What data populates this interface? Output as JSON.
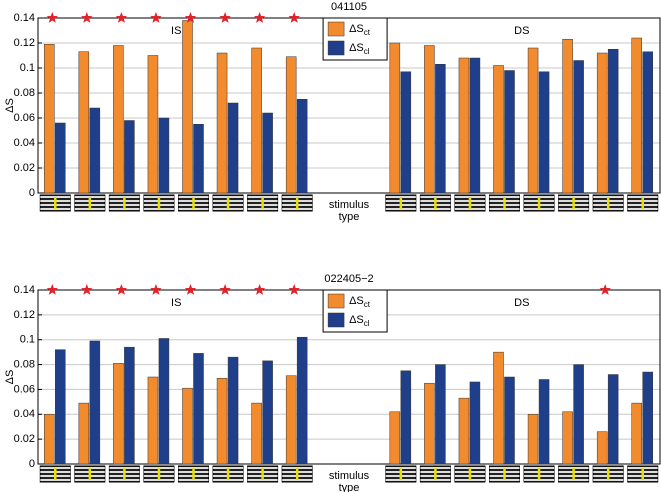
{
  "chart_data": [
    {
      "type": "bar",
      "title": "041105",
      "ylabel": "ΔS",
      "xlabel_lines": [
        "stimulus",
        "type"
      ],
      "group_labels": [
        "IS",
        "DS"
      ],
      "categories": [
        null,
        null,
        null,
        null,
        null,
        null,
        null,
        null,
        null,
        null,
        null,
        null,
        null,
        null,
        null,
        null
      ],
      "series": [
        {
          "name": "ΔSct",
          "color": "#f28a2e",
          "values": [
            0.119,
            0.113,
            0.118,
            0.11,
            0.138,
            0.112,
            0.116,
            0.109,
            0.12,
            0.118,
            0.108,
            0.102,
            0.116,
            0.123,
            0.112,
            0.124
          ]
        },
        {
          "name": "ΔScl",
          "color": "#1f3f8a",
          "values": [
            0.056,
            0.068,
            0.058,
            0.06,
            0.055,
            0.072,
            0.064,
            0.075,
            0.097,
            0.103,
            0.108,
            0.098,
            0.097,
            0.106,
            0.115,
            0.113
          ]
        }
      ],
      "stars": [
        true,
        true,
        true,
        true,
        true,
        true,
        true,
        true,
        false,
        false,
        false,
        false,
        false,
        false,
        false,
        false
      ],
      "ylim": [
        0,
        0.14
      ],
      "yticks": [
        0,
        0.02,
        0.04,
        0.06,
        0.08,
        0.1,
        0.12,
        0.14
      ],
      "grid": true
    },
    {
      "type": "bar",
      "title": "022405−2",
      "ylabel": "ΔS",
      "xlabel_lines": [
        "stimulus",
        "type"
      ],
      "group_labels": [
        "IS",
        "DS"
      ],
      "categories": [
        null,
        null,
        null,
        null,
        null,
        null,
        null,
        null,
        null,
        null,
        null,
        null,
        null,
        null,
        null,
        null
      ],
      "series": [
        {
          "name": "ΔSct",
          "color": "#f28a2e",
          "values": [
            0.04,
            0.049,
            0.081,
            0.07,
            0.061,
            0.069,
            0.049,
            0.071,
            0.042,
            0.065,
            0.053,
            0.09,
            0.04,
            0.042,
            0.026,
            0.049
          ]
        },
        {
          "name": "ΔScl",
          "color": "#1f3f8a",
          "values": [
            0.092,
            0.099,
            0.094,
            0.101,
            0.089,
            0.086,
            0.083,
            0.102,
            0.075,
            0.08,
            0.066,
            0.07,
            0.068,
            0.08,
            0.072,
            0.074
          ]
        }
      ],
      "stars": [
        true,
        true,
        true,
        true,
        true,
        true,
        true,
        true,
        false,
        false,
        false,
        false,
        false,
        false,
        true,
        false
      ],
      "ylim": [
        0,
        0.14
      ],
      "yticks": [
        0,
        0.02,
        0.04,
        0.06,
        0.08,
        0.1,
        0.12,
        0.14
      ],
      "grid": true
    }
  ]
}
